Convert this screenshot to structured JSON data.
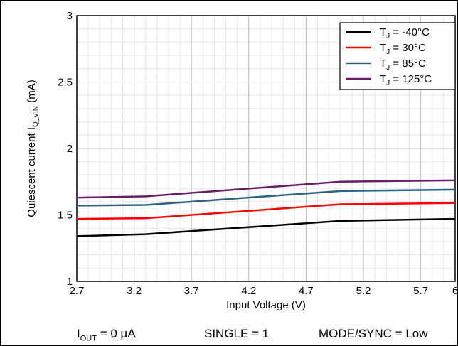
{
  "chart_data": {
    "type": "line",
    "xlabel": "Input Voltage (V)",
    "ylabel": {
      "main": "Quiescent current I",
      "sub": "Q_VIN",
      "unit": " (mA)"
    },
    "xlim": [
      2.7,
      6
    ],
    "ylim": [
      1,
      3
    ],
    "x_ticks": [
      "2.7",
      "3.2",
      "3.7",
      "4.2",
      "4.7",
      "5.2",
      "5.7",
      "6"
    ],
    "y_ticks": [
      "1",
      "1.5",
      "2",
      "2.5",
      "3"
    ],
    "grid": true,
    "legend_position": "top-right",
    "series": [
      {
        "name": "T_J = -40°C",
        "legend_main": "T",
        "legend_sub": "J",
        "legend_rest": " = -40°C",
        "color": "#000000",
        "x": [
          2.7,
          3.3,
          5.0,
          6.0
        ],
        "y": [
          1.34,
          1.355,
          1.455,
          1.47
        ]
      },
      {
        "name": "T_J = 30°C",
        "legend_main": "T",
        "legend_sub": "J",
        "legend_rest": " =  30°C",
        "color": "#ff0000",
        "x": [
          2.7,
          3.3,
          5.0,
          6.0
        ],
        "y": [
          1.47,
          1.475,
          1.58,
          1.59
        ]
      },
      {
        "name": "T_J = 85°C",
        "legend_main": "T",
        "legend_sub": "J",
        "legend_rest": " =  85°C",
        "color": "#2c6482",
        "x": [
          2.7,
          3.3,
          5.0,
          6.0
        ],
        "y": [
          1.57,
          1.575,
          1.68,
          1.69
        ]
      },
      {
        "name": "T_J = 125°C",
        "legend_main": "T",
        "legend_sub": "J",
        "legend_rest": " = 125°C",
        "color": "#6a1b6a",
        "x": [
          2.7,
          3.3,
          5.0,
          6.0
        ],
        "y": [
          1.63,
          1.64,
          1.75,
          1.76
        ]
      }
    ]
  },
  "conditions": {
    "iout": {
      "main": "I",
      "sub": "OUT",
      "rest": " = 0 µA"
    },
    "single": "SINGLE = 1",
    "mode": "MODE/SYNC = Low"
  }
}
